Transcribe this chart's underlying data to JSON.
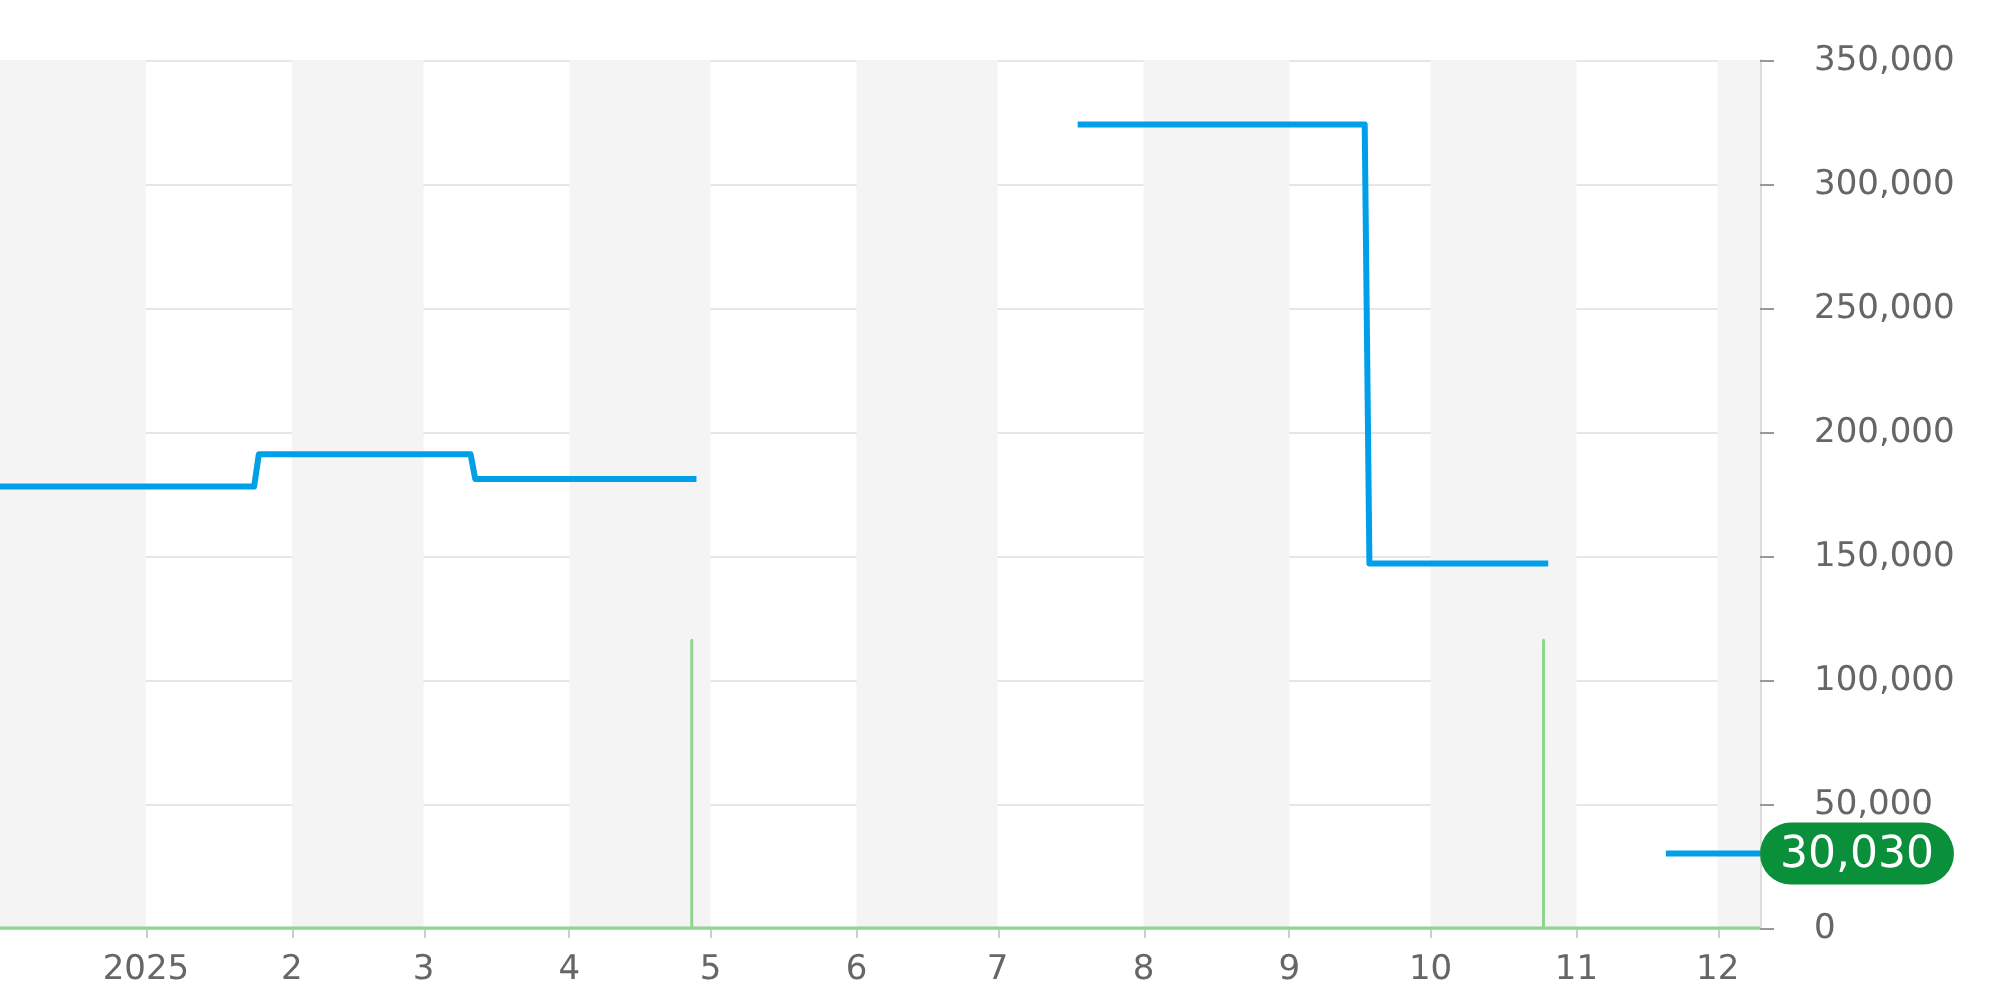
{
  "chart_data": {
    "type": "line",
    "x": [
      "2024-12-01",
      "2025-01-24",
      "2025-01-25",
      "2025-03-11",
      "2025-03-12",
      "2025-04-28",
      "2025-04-29",
      "2025-07-18",
      "2025-09-17",
      "2025-09-18",
      "2025-10-26",
      "2025-10-27",
      "2025-11-20",
      "2025-12-10"
    ],
    "series": [
      {
        "type": "line",
        "color": "#8ed68f",
        "x": [
          "2024-12-01",
          "2025-04-27",
          "2025-04-27",
          "2025-04-27",
          "2025-10-25",
          "2025-10-25",
          "2025-10-25",
          "2025-12-10"
        ],
        "values": [
          0,
          0,
          116000,
          0,
          0,
          116000,
          0,
          0
        ]
      },
      {
        "color": "#00a0e9",
        "values": [
          178000,
          178000,
          191000,
          191000,
          181000,
          181000,
          null,
          324000,
          324000,
          147000,
          147000,
          null,
          30030,
          30030
        ],
        "value_labels": [
          null,
          null,
          null,
          null,
          null,
          null,
          null,
          null,
          null,
          null,
          null,
          null,
          null,
          "30,030"
        ]
      }
    ],
    "xlim": [
      "2024-12-01",
      "2025-12-10"
    ],
    "xticks": [
      {
        "value": "2025-01-01",
        "label": "2025"
      },
      {
        "value": "2025-02-01",
        "label": "2"
      },
      {
        "value": "2025-03-01",
        "label": "3"
      },
      {
        "value": "2025-04-01",
        "label": "4"
      },
      {
        "value": "2025-05-01",
        "label": "5"
      },
      {
        "value": "2025-06-01",
        "label": "6"
      },
      {
        "value": "2025-07-01",
        "label": "7"
      },
      {
        "value": "2025-08-01",
        "label": "8"
      },
      {
        "value": "2025-09-01",
        "label": "9"
      },
      {
        "value": "2025-10-01",
        "label": "10"
      },
      {
        "value": "2025-11-01",
        "label": "11"
      },
      {
        "value": "2025-12-01",
        "label": "12"
      }
    ],
    "ylim": [
      0,
      350000
    ],
    "yticks": [
      0,
      {
        "value": 50000,
        "label": "50,000"
      },
      {
        "value": 100000,
        "label": "100,000"
      },
      {
        "value": 150000,
        "label": "150,000"
      },
      {
        "value": 200000,
        "label": "200,000"
      },
      {
        "value": 250000,
        "label": "250,000"
      },
      {
        "value": 300000,
        "label": "300,000"
      },
      {
        "value": 350000,
        "label": "350,000"
      }
    ],
    "bands": [
      {
        "axis": "x",
        "from": "2024-12-01",
        "to": "2025-01-01",
        "color": "#f4f4f4"
      },
      {
        "axis": "x",
        "from": "2025-02-01",
        "to": "2025-03-01",
        "color": "#f4f4f4"
      },
      {
        "axis": "x",
        "from": "2025-04-01",
        "to": "2025-05-01",
        "color": "#f4f4f4"
      },
      {
        "axis": "x",
        "from": "2025-06-01",
        "to": "2025-07-01",
        "color": "#f4f4f4"
      },
      {
        "axis": "x",
        "from": "2025-08-01",
        "to": "2025-09-01",
        "color": "#f4f4f4"
      },
      {
        "axis": "x",
        "from": "2025-10-01",
        "to": "2025-11-01",
        "color": "#f4f4f4"
      },
      {
        "axis": "x",
        "from": "2025-12-01",
        "to": "2025-12-10",
        "color": "#f4f4f4"
      }
    ],
    "grid": "y"
  }
}
